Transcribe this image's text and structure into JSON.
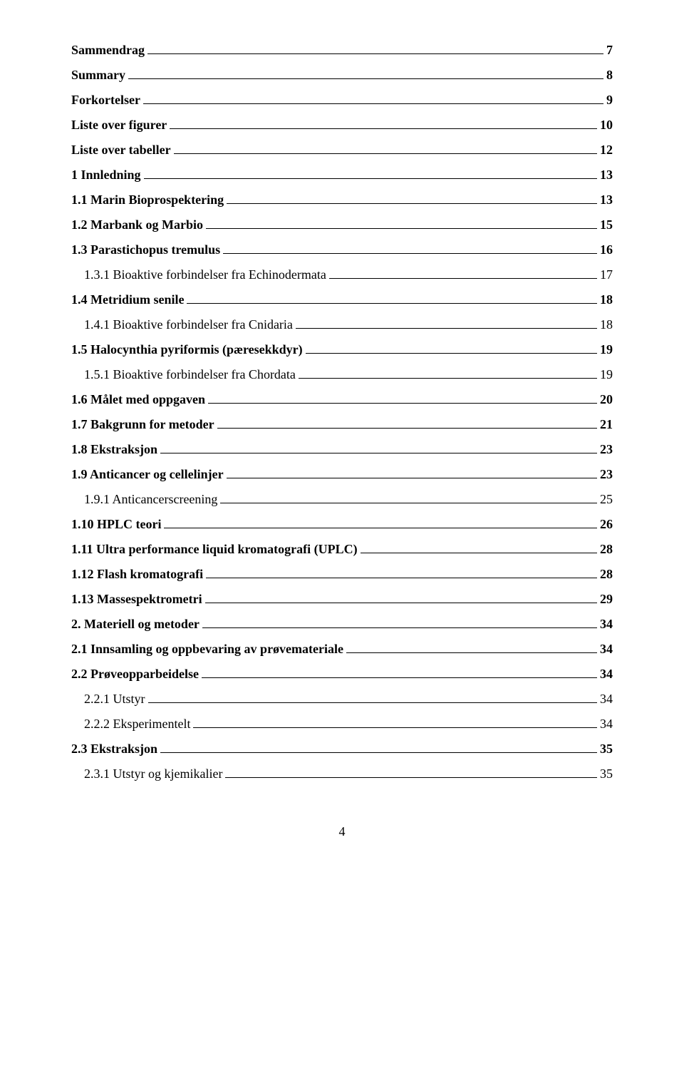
{
  "toc": [
    {
      "label": "Sammendrag",
      "page": "7",
      "bold": true,
      "indent": 0
    },
    {
      "label": "Summary",
      "page": "8",
      "bold": true,
      "indent": 0
    },
    {
      "label": "Forkortelser",
      "page": "9",
      "bold": true,
      "indent": 0
    },
    {
      "label": "Liste over figurer",
      "page": "10",
      "bold": true,
      "indent": 0
    },
    {
      "label": "Liste over tabeller",
      "page": "12",
      "bold": true,
      "indent": 0
    },
    {
      "label": "1 Innledning",
      "page": "13",
      "bold": true,
      "indent": 0
    },
    {
      "label": "1.1 Marin Bioprospektering",
      "page": "13",
      "bold": true,
      "indent": 0
    },
    {
      "label": "1.2 Marbank og Marbio",
      "page": "15",
      "bold": true,
      "indent": 0
    },
    {
      "label": "1.3 Parastichopus tremulus",
      "page": "16",
      "bold": true,
      "indent": 0
    },
    {
      "label": "1.3.1 Bioaktive forbindelser fra Echinodermata",
      "page": "17",
      "bold": false,
      "indent": 1
    },
    {
      "label": "1.4 Metridium senile",
      "page": "18",
      "bold": true,
      "indent": 0
    },
    {
      "label": "1.4.1 Bioaktive forbindelser fra Cnidaria",
      "page": "18",
      "bold": false,
      "indent": 1
    },
    {
      "label": "1.5 Halocynthia pyriformis (pæresekkdyr)",
      "page": "19",
      "bold": true,
      "indent": 0
    },
    {
      "label": "1.5.1 Bioaktive forbindelser fra Chordata",
      "page": "19",
      "bold": false,
      "indent": 1
    },
    {
      "label": "1.6 Målet med oppgaven",
      "page": "20",
      "bold": true,
      "indent": 0
    },
    {
      "label": "1.7 Bakgrunn for metoder",
      "page": "21",
      "bold": true,
      "indent": 0
    },
    {
      "label": "1.8 Ekstraksjon",
      "page": "23",
      "bold": true,
      "indent": 0
    },
    {
      "label": "1.9 Anticancer og cellelinjer",
      "page": "23",
      "bold": true,
      "indent": 0
    },
    {
      "label": "1.9.1 Anticancerscreening",
      "page": "25",
      "bold": false,
      "indent": 1
    },
    {
      "label": "1.10 HPLC teori",
      "page": "26",
      "bold": true,
      "indent": 0
    },
    {
      "label": "1.11 Ultra performance liquid kromatografi (UPLC)",
      "page": "28",
      "bold": true,
      "indent": 0
    },
    {
      "label": "1.12 Flash kromatografi",
      "page": "28",
      "bold": true,
      "indent": 0
    },
    {
      "label": "1.13 Massespektrometri",
      "page": "29",
      "bold": true,
      "indent": 0
    },
    {
      "label": "2. Materiell og metoder",
      "page": "34",
      "bold": true,
      "indent": 0
    },
    {
      "label": "2.1 Innsamling og oppbevaring av prøvemateriale",
      "page": "34",
      "bold": true,
      "indent": 0
    },
    {
      "label": "2.2 Prøveopparbeidelse",
      "page": "34",
      "bold": true,
      "indent": 0
    },
    {
      "label": "2.2.1 Utstyr",
      "page": "34",
      "bold": false,
      "indent": 1
    },
    {
      "label": "2.2.2 Eksperimentelt",
      "page": "34",
      "bold": false,
      "indent": 1
    },
    {
      "label": "2.3 Ekstraksjon",
      "page": "35",
      "bold": true,
      "indent": 0
    },
    {
      "label": "2.3.1 Utstyr og kjemikalier",
      "page": "35",
      "bold": false,
      "indent": 1
    }
  ],
  "footer_page": "4"
}
